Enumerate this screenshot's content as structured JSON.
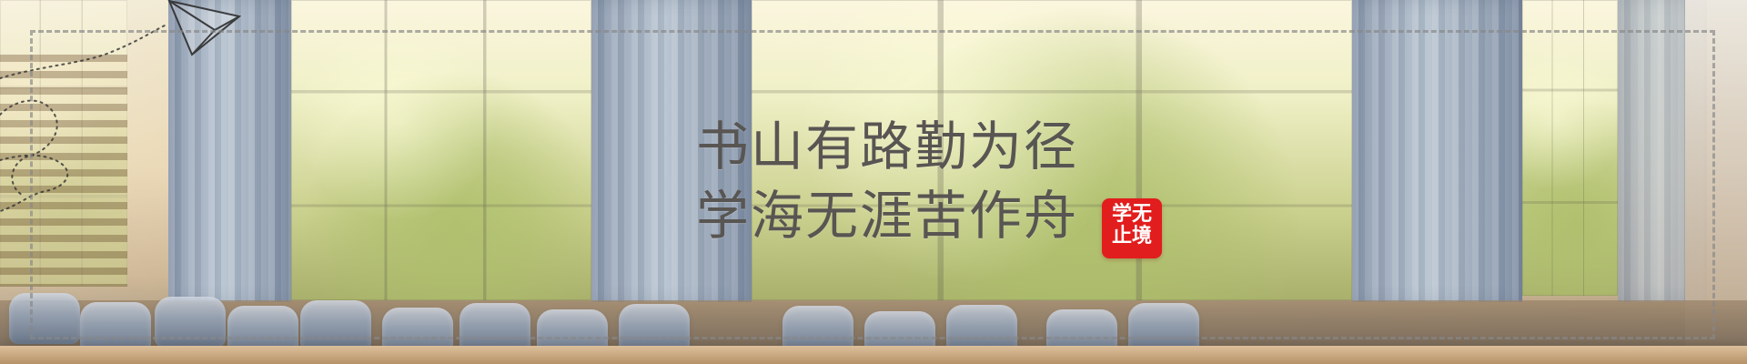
{
  "banner": {
    "headline_line_1": "书山有路勤为径",
    "headline_line_2": "学海无涯苦作舟",
    "seal_line_1": "学无",
    "seal_line_2": "止境"
  },
  "theme": {
    "seal_color": "#e21d1d",
    "text_color": "#585552",
    "frame_color": "#888888"
  },
  "icons": {
    "plane": "paper-plane-icon",
    "trail": "dotted-flight-path-icon"
  }
}
